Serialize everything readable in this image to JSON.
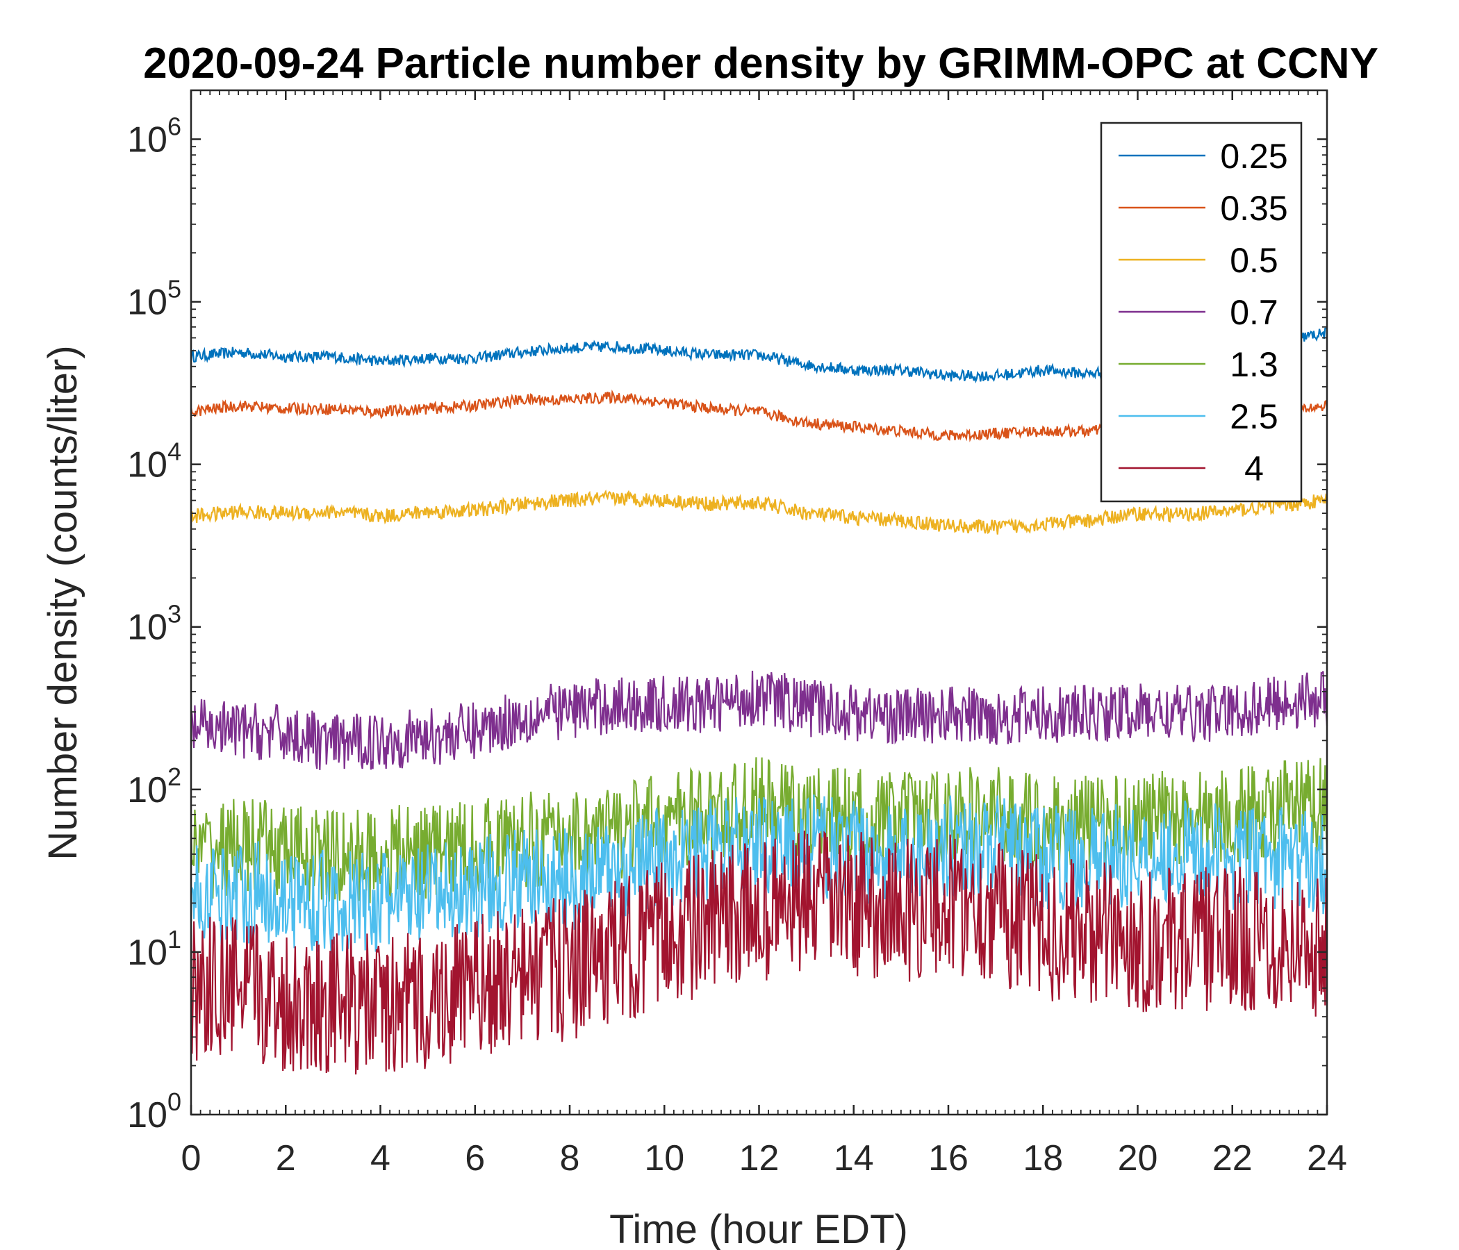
{
  "chart_data": {
    "type": "line",
    "title": "2020-09-24 Particle number density by GRIMM-OPC at CCNY",
    "xlabel": "Time (hour EDT)",
    "ylabel": "Number density (counts/liter)",
    "xlim": [
      0,
      24
    ],
    "ylim": [
      1,
      2000000
    ],
    "yscale": "log",
    "xticks": [
      0,
      2,
      4,
      6,
      8,
      10,
      12,
      14,
      16,
      18,
      20,
      22,
      24
    ],
    "xtick_labels": [
      "0",
      "2",
      "4",
      "6",
      "8",
      "10",
      "12",
      "14",
      "16",
      "18",
      "20",
      "22",
      "24"
    ],
    "yticks": [
      1,
      10,
      100,
      1000,
      10000,
      100000,
      1000000
    ],
    "ytick_labels": [
      {
        "base": "10",
        "exp": "0"
      },
      {
        "base": "10",
        "exp": "1"
      },
      {
        "base": "10",
        "exp": "2"
      },
      {
        "base": "10",
        "exp": "3"
      },
      {
        "base": "10",
        "exp": "4"
      },
      {
        "base": "10",
        "exp": "5"
      },
      {
        "base": "10",
        "exp": "6"
      }
    ],
    "grid": false,
    "legend_position": "top-right",
    "x": [
      0,
      1,
      2,
      3,
      4,
      5,
      6,
      7,
      8,
      9,
      10,
      11,
      12,
      13,
      14,
      15,
      16,
      17,
      18,
      19,
      20,
      21,
      22,
      23,
      24
    ],
    "series": [
      {
        "name": "0.25",
        "color": "#0072BD",
        "values": [
          46000,
          49000,
          46000,
          46000,
          43000,
          45000,
          45000,
          49000,
          52000,
          53000,
          50000,
          47000,
          47000,
          41000,
          38000,
          38000,
          35000,
          35000,
          38000,
          36000,
          40000,
          45000,
          52000,
          58000,
          64000
        ]
      },
      {
        "name": "0.35",
        "color": "#D95319",
        "values": [
          21000,
          23000,
          22000,
          22000,
          21000,
          22000,
          23000,
          25000,
          25000,
          26000,
          24000,
          22000,
          21000,
          18000,
          17000,
          16000,
          15000,
          15500,
          16000,
          16000,
          17000,
          18000,
          19000,
          21000,
          23000
        ]
      },
      {
        "name": "0.5",
        "color": "#EDB120",
        "values": [
          4800,
          5100,
          5000,
          5100,
          4800,
          5100,
          5200,
          5700,
          6000,
          6200,
          6000,
          5700,
          5800,
          5000,
          4700,
          4500,
          4200,
          4100,
          4300,
          4500,
          5000,
          4900,
          5200,
          5600,
          6000
        ]
      },
      {
        "name": "0.7",
        "color": "#7E2F8E",
        "values": [
          240,
          230,
          220,
          190,
          200,
          210,
          230,
          280,
          310,
          330,
          330,
          330,
          380,
          320,
          300,
          280,
          290,
          280,
          290,
          290,
          300,
          290,
          300,
          340,
          370
        ]
      },
      {
        "name": "1.3",
        "color": "#77AC30",
        "values": [
          40,
          45,
          42,
          38,
          40,
          42,
          45,
          48,
          52,
          55,
          65,
          70,
          80,
          70,
          68,
          65,
          68,
          70,
          62,
          62,
          65,
          68,
          70,
          75,
          80
        ]
      },
      {
        "name": "2.5",
        "color": "#4DBEEE",
        "values": [
          22,
          24,
          22,
          20,
          20,
          22,
          25,
          28,
          28,
          32,
          38,
          42,
          48,
          45,
          42,
          40,
          45,
          45,
          38,
          38,
          40,
          42,
          38,
          38,
          35
        ]
      },
      {
        "name": "4",
        "color": "#A2142F",
        "values": [
          6,
          6,
          5,
          5,
          4.5,
          5,
          6,
          7,
          8,
          10,
          13,
          15,
          18,
          20,
          20,
          18,
          20,
          18,
          14,
          13,
          12,
          12,
          12,
          12,
          11
        ]
      }
    ]
  }
}
